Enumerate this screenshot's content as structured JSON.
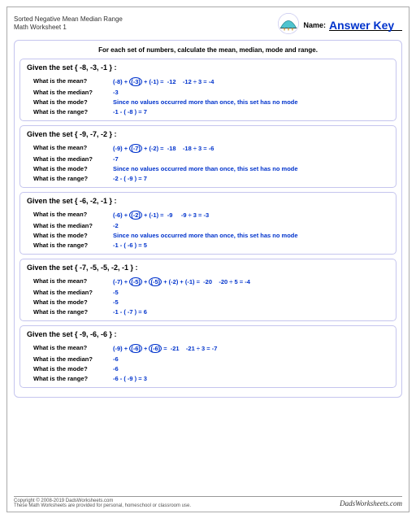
{
  "colors": {
    "accent": "#0033cc",
    "border": "#c5c5ee",
    "text": "#000"
  },
  "header": {
    "title_line1": "Sorted Negative Mean Median Range",
    "title_line2": "Math Worksheet 1",
    "name_label": "Name:",
    "answer_key": "Answer Key"
  },
  "instruction": "For each set of numbers, calculate the mean, median, mode and range.",
  "questions": {
    "mean": "What is the mean?",
    "median": "What is the median?",
    "mode": "What is the mode?",
    "range": "What is the range?"
  },
  "no_mode": "Since no values occurred more than once, this set has no mode",
  "problems": [
    {
      "given": "Given the set { -8, -3, -1 } :",
      "mean_html": "(-8) + <span class='circ'>(-3)</span> + (-1) = &nbsp;-12 &nbsp;&nbsp; -12 ÷ 3 = -4",
      "median": "-3",
      "mode": null,
      "range": "-1 - ( -8 ) = 7"
    },
    {
      "given": "Given the set { -9, -7, -2 } :",
      "mean_html": "(-9) + <span class='circ'>(-7)</span> + (-2) = &nbsp;-18 &nbsp;&nbsp; -18 ÷ 3 = -6",
      "median": "-7",
      "mode": null,
      "range": "-2 - ( -9 ) = 7"
    },
    {
      "given": "Given the set { -6, -2, -1 } :",
      "mean_html": "(-6) + <span class='circ'>(-2)</span> + (-1) = &nbsp;-9 &nbsp;&nbsp;&nbsp; -9 ÷ 3 = -3",
      "median": "-2",
      "mode": null,
      "range": "-1 - ( -6 ) = 5"
    },
    {
      "given": "Given the set { -7, -5, -5, -2, -1 } :",
      "mean_html": "(-7) + <span class='circ'>(-5)</span> + <span class='circ'>(-5)</span> + (-2) + (-1) = &nbsp;-20 &nbsp;&nbsp; -20 ÷ 5 = -4",
      "median": "-5",
      "mode": "-5",
      "range": "-1 - ( -7 ) = 6"
    },
    {
      "given": "Given the set { -9, -6, -6 } :",
      "mean_html": "(-9) + <span class='circ'>(-6)</span> + <span class='circ'>(-6)</span> = &nbsp;-21 &nbsp;&nbsp; -21 ÷ 3 = -7",
      "median": "-6",
      "mode": "-6",
      "range": "-6 - ( -9 ) = 3"
    }
  ],
  "footer": {
    "copyright": "Copyright © 2008-2019 DadsWorksheets.com",
    "note": "These Math Worksheets are provided for personal, homeschool or classroom use.",
    "brand": "DadsWorksheets.com"
  }
}
